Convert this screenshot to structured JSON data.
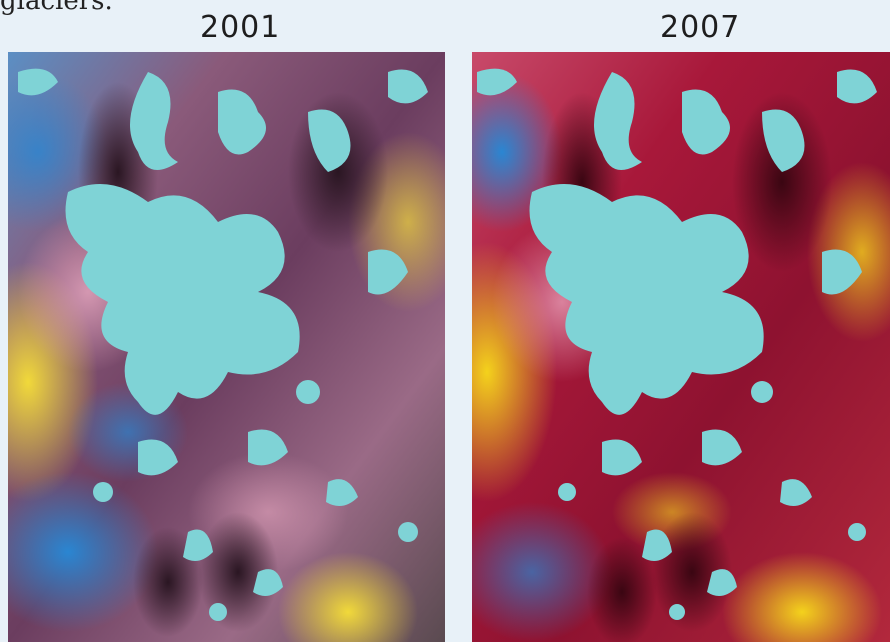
{
  "cropped_text": "glaciers.",
  "panels": [
    {
      "year": "2001"
    },
    {
      "year": "2007"
    }
  ],
  "colors": {
    "background": "#e8f1f8",
    "ice": "#7fd3d6",
    "terrain_2001": "#7b4a68",
    "terrain_2007": "#b3203c",
    "highlight_yellow": "#e9d233",
    "shadow_blue": "#2a86d2"
  }
}
